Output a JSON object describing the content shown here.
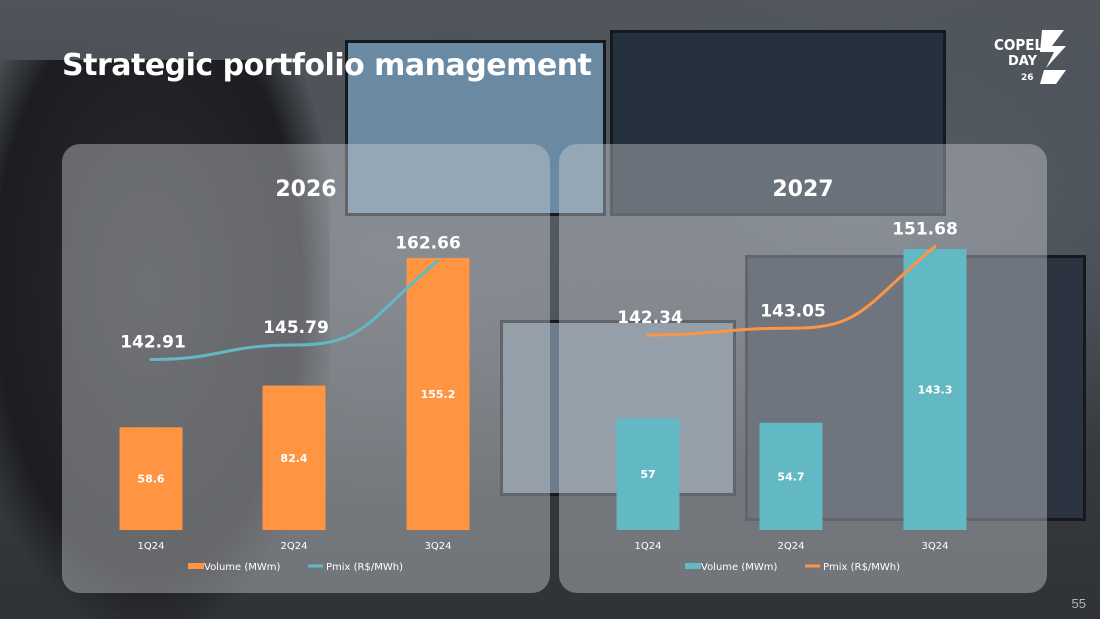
{
  "page": {
    "title": "Strategic portfolio management",
    "logo_lines": [
      "COPEL",
      "DAY",
      "26"
    ],
    "page_number": "55"
  },
  "colors": {
    "orange": "#ff9442",
    "teal": "#62b9c4",
    "white": "#ffffff"
  },
  "chart_data": [
    {
      "type": "bar",
      "title": "2026",
      "categories": [
        "1Q24",
        "2Q24",
        "3Q24"
      ],
      "series": [
        {
          "name": "Volume (MWm)",
          "type": "bar",
          "values": [
            58.6,
            82.4,
            155.2
          ],
          "labels": [
            "58.6",
            "82.4",
            "155.2"
          ]
        },
        {
          "name": "Pmix (R$/MWh)",
          "type": "line",
          "values": [
            142.91,
            145.79,
            162.66
          ],
          "labels": [
            "142.91",
            "145.79",
            "162.66"
          ]
        }
      ],
      "bar_color": "#ff9442",
      "line_color": "#62b9c4",
      "bar_ylim": [
        0,
        170
      ],
      "line_ylim": [
        132,
        168
      ],
      "legend_position": "bottom"
    },
    {
      "type": "bar",
      "title": "2027",
      "categories": [
        "1Q24",
        "2Q24",
        "3Q24"
      ],
      "series": [
        {
          "name": "Volume (MWm)",
          "type": "bar",
          "values": [
            57,
            54.7,
            143.3
          ],
          "labels": [
            "57",
            "54.7",
            "143.3"
          ]
        },
        {
          "name": "Pmix (R$/MWh)",
          "type": "line",
          "values": [
            142.34,
            143.05,
            151.68
          ],
          "labels": [
            "142.34",
            "143.05",
            "151.68"
          ]
        }
      ],
      "bar_color": "#62b9c4",
      "line_color": "#ff9442",
      "bar_ylim": [
        0,
        152
      ],
      "line_ylim": [
        134,
        153
      ],
      "legend_position": "bottom"
    }
  ]
}
